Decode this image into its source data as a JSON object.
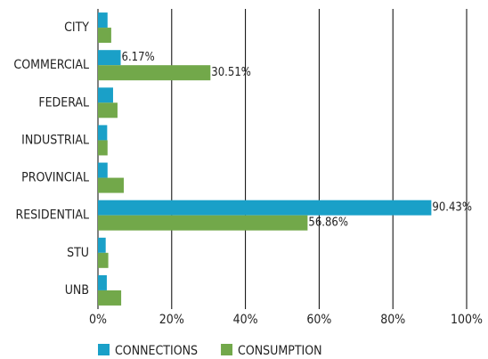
{
  "chart_data": {
    "type": "hbar",
    "categories": [
      "CITY",
      "COMMERCIAL",
      "FEDERAL",
      "INDUSTRIAL",
      "PROVINCIAL",
      "RESIDENTIAL",
      "STU",
      "UNB"
    ],
    "series": [
      {
        "name": "CONNECTIONS",
        "color": "#1aa0c8",
        "values": [
          2.6,
          6.17,
          4.1,
          2.5,
          2.6,
          90.43,
          2.1,
          2.4
        ],
        "value_labels": [
          null,
          "6.17%",
          null,
          null,
          null,
          "90.43%",
          null,
          null
        ]
      },
      {
        "name": "CONSUMPTION",
        "color": "#72a84a",
        "values": [
          3.6,
          30.51,
          5.3,
          2.6,
          7.0,
          56.86,
          2.8,
          6.3
        ],
        "value_labels": [
          null,
          "30.51%",
          null,
          null,
          null,
          "56.86%",
          null,
          null
        ]
      }
    ],
    "xlim": [
      0,
      100
    ],
    "xticks": [
      {
        "value": 0,
        "label": "0%"
      },
      {
        "value": 20,
        "label": "20%"
      },
      {
        "value": 40,
        "label": "40%"
      },
      {
        "value": 60,
        "label": "60%"
      },
      {
        "value": 80,
        "label": "80%"
      },
      {
        "value": 100,
        "label": "100%"
      }
    ],
    "grid": true,
    "legend": "bottom"
  }
}
